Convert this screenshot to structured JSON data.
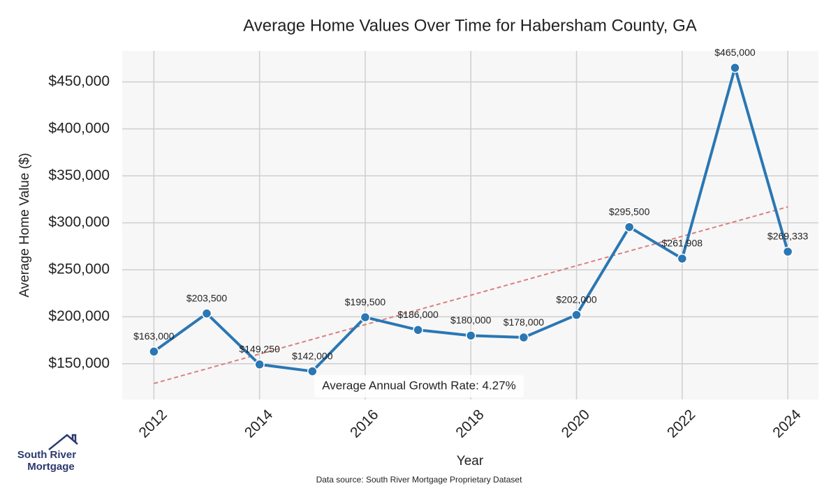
{
  "chart_data": {
    "type": "line",
    "title": "Average Home Values Over Time for Habersham County, GA",
    "x_label": "Year",
    "y_label": "Average Home Value ($)",
    "x": [
      2012,
      2013,
      2014,
      2015,
      2016,
      2017,
      2018,
      2019,
      2020,
      2021,
      2022,
      2023,
      2024
    ],
    "values": [
      163000,
      203500,
      149250,
      142000,
      199500,
      186000,
      180000,
      178000,
      202000,
      295500,
      261908,
      465000,
      269333
    ],
    "value_labels": [
      "$163,000",
      "$203,500",
      "$149,250",
      "$142,000",
      "$199,500",
      "$186,000",
      "$180,000",
      "$178,000",
      "$202,000",
      "$295,500",
      "$261,908",
      "$465,000",
      "$269,333"
    ],
    "color": "#2a77b4",
    "trend_line": {
      "x": [
        2012,
        2024
      ],
      "values": [
        129000,
        317000
      ],
      "color": "#d98080"
    },
    "annotation": "Average Annual Growth Rate: 4.27%",
    "xlim": [
      2011.4,
      2024.58
    ],
    "xticks": [
      2012,
      2014,
      2016,
      2018,
      2020,
      2022,
      2024
    ],
    "ylim": [
      112000,
      483000
    ],
    "yticks": [
      {
        "value": 150000,
        "label": "$150,000"
      },
      {
        "value": 200000,
        "label": "$200,000"
      },
      {
        "value": 250000,
        "label": "$250,000"
      },
      {
        "value": 300000,
        "label": "$300,000"
      },
      {
        "value": 350000,
        "label": "$350,000"
      },
      {
        "value": 400000,
        "label": "$400,000"
      },
      {
        "value": 450000,
        "label": "$450,000"
      }
    ],
    "grid": true,
    "source": "Data source: South River Mortgage Proprietary Dataset"
  },
  "logo": {
    "lines": [
      "South River",
      "Mortgage"
    ]
  }
}
